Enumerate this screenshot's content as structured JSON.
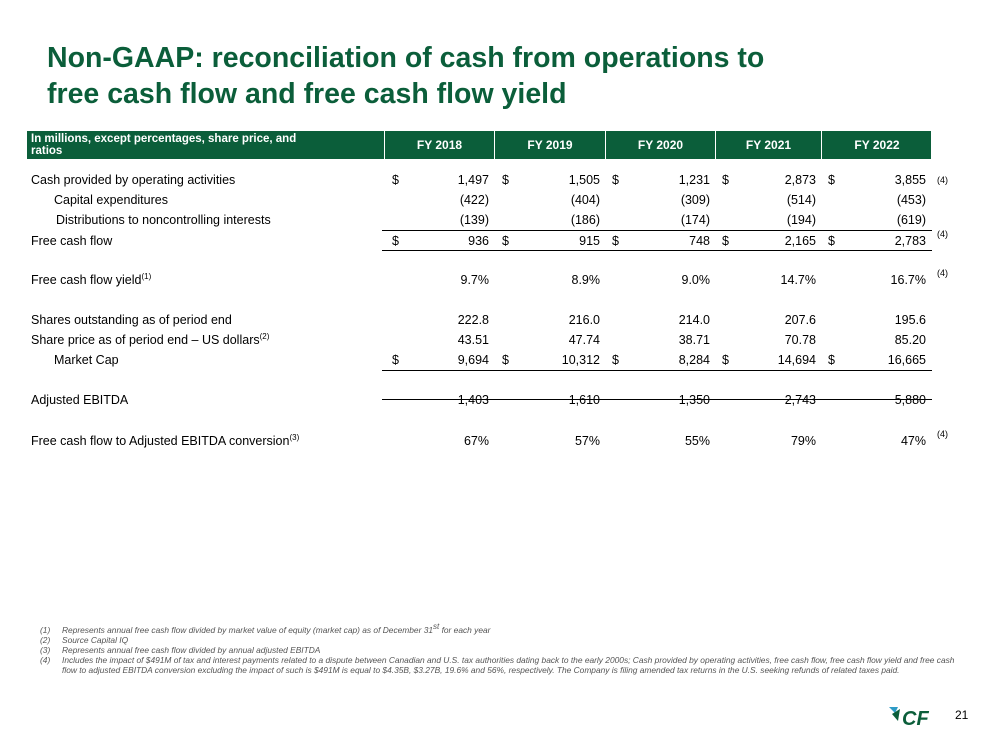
{
  "title": {
    "line1": "Non-GAAP: reconciliation of cash from operations to",
    "line2": "free cash flow and free cash flow yield"
  },
  "table": {
    "header_label_line1": "In millions, except percentages, share price, and",
    "header_label_line2": "ratios",
    "years": [
      "FY 2018",
      "FY 2019",
      "FY 2020",
      "FY 2021",
      "FY 2022"
    ],
    "rows": {
      "cfo": {
        "label": "Cash provided by operating activities",
        "currency": "$",
        "values": [
          "1,497",
          "1,505",
          "1,231",
          "2,873",
          "3,855"
        ],
        "note": "(4)"
      },
      "capex": {
        "label": "Capital expenditures",
        "values": [
          "(422)",
          "(404)",
          "(309)",
          "(514)",
          "(453)"
        ]
      },
      "dist": {
        "label": "Distributions to noncontrolling interests",
        "values": [
          "(139)",
          "(186)",
          "(174)",
          "(194)",
          "(619)"
        ]
      },
      "fcf": {
        "label": "Free cash flow",
        "currency": "$",
        "values": [
          "936",
          "915",
          "748",
          "2,165",
          "2,783"
        ],
        "note": "(4)"
      },
      "fcfy": {
        "label": "Free cash flow yield",
        "sup": "(1)",
        "values": [
          "9.7%",
          "8.9%",
          "9.0%",
          "14.7%",
          "16.7%"
        ],
        "note": "(4)"
      },
      "shares": {
        "label": "Shares outstanding as of period end",
        "values": [
          "222.8",
          "216.0",
          "214.0",
          "207.6",
          "195.6"
        ]
      },
      "price": {
        "label": "Share price as of period end – US dollars",
        "sup": "(2)",
        "values": [
          "43.51",
          "47.74",
          "38.71",
          "70.78",
          "85.20"
        ]
      },
      "mcap": {
        "label": "Market Cap",
        "currency": "$",
        "values": [
          "9,694",
          "10,312",
          "8,284",
          "14,694",
          "16,665"
        ]
      },
      "ebitda": {
        "label": "Adjusted EBITDA",
        "values": [
          "1,403",
          "1,610",
          "1,350",
          "2,743",
          "5,880"
        ]
      },
      "conv": {
        "label": "Free cash flow to Adjusted EBITDA conversion",
        "sup": "(3)",
        "values": [
          "67%",
          "57%",
          "55%",
          "79%",
          "47%"
        ],
        "note": "(4)"
      }
    }
  },
  "footnotes": [
    {
      "num": "(1)",
      "text_a": "Represents annual free cash flow divided by market value of equity (market cap) as of December 31",
      "sup": "st",
      "text_b": " for each year"
    },
    {
      "num": "(2)",
      "text_a": "Source Capital IQ"
    },
    {
      "num": "(3)",
      "text_a": "Represents annual free cash flow divided by annual adjusted EBITDA"
    },
    {
      "num": "(4)",
      "text_a": "Includes the impact of $491M of tax and interest payments related to a dispute between Canadian and U.S. tax authorities dating back to the early 2000s; Cash provided by operating activities, free cash flow, free cash flow yield and free cash flow to adjusted EBITDA conversion excluding the impact of such is $491M is equal to $4.35B, $3.27B, 19.6% and 56%, respectively. The Company is filing amended tax returns in the U.S. seeking refunds of related taxes paid."
    }
  ],
  "logo": {
    "text": "CF",
    "color": "#0b5e3a",
    "accent": "#2e9bc6"
  },
  "page_number": "21"
}
